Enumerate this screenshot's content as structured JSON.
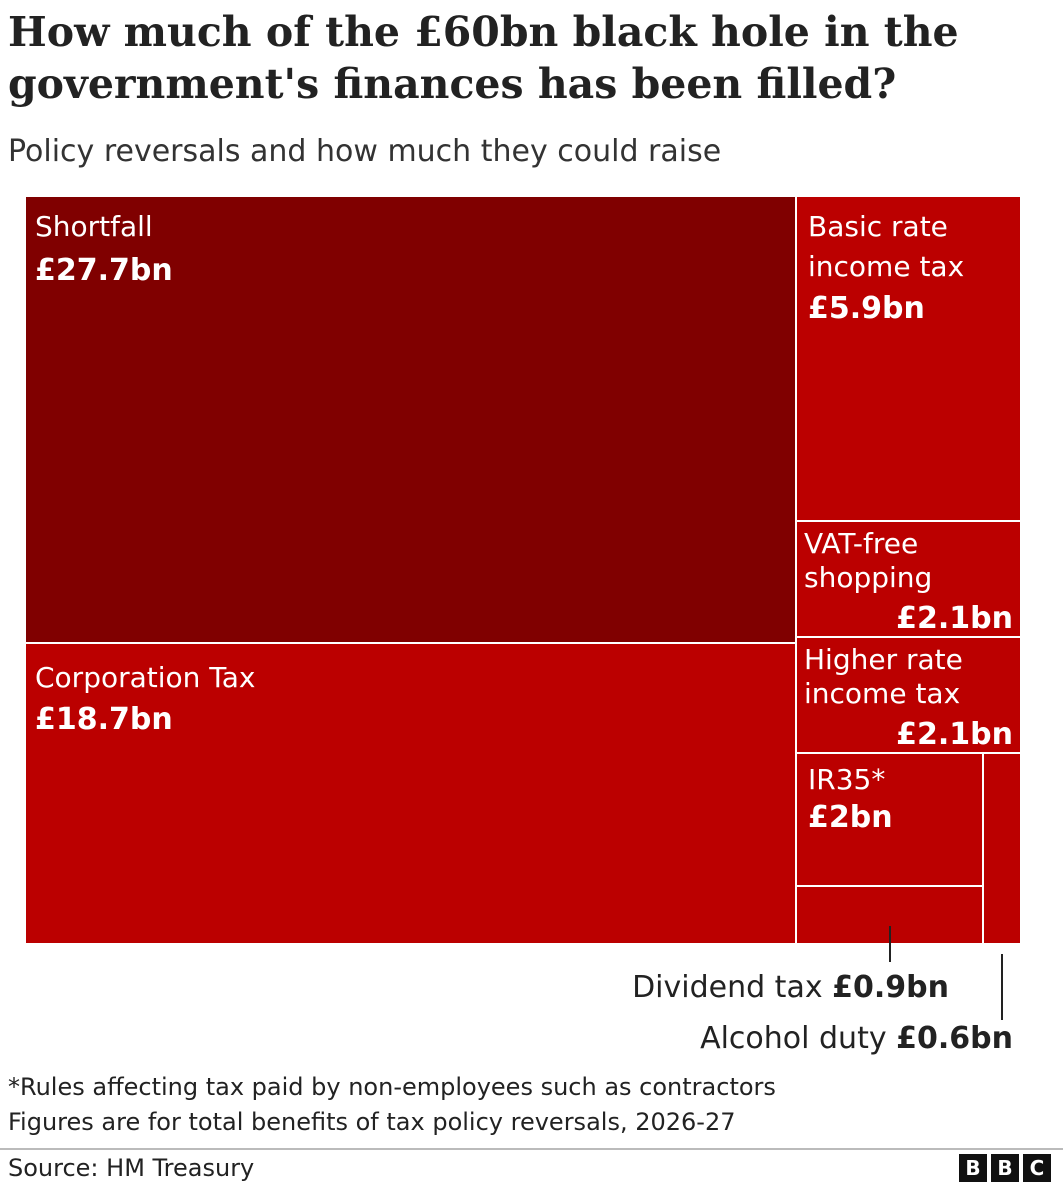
{
  "title": "How much of the £60bn black hole in the government's finances has been filled?",
  "subtitle": "Policy reversals and how much they could raise",
  "chart_data": {
    "type": "treemap",
    "unit": "£bn",
    "items": [
      {
        "name": "Shortfall",
        "value": 27.7,
        "value_label": "£27.7bn",
        "color": "#800000"
      },
      {
        "name": "Corporation Tax",
        "value": 18.7,
        "value_label": "£18.7bn",
        "color": "#bb0000"
      },
      {
        "name": "Basic rate income tax",
        "value": 5.9,
        "value_label": "£5.9bn",
        "color": "#bb0000"
      },
      {
        "name": "VAT-free shopping",
        "value": 2.1,
        "value_label": "£2.1bn",
        "color": "#bb0000"
      },
      {
        "name": "Higher rate income tax",
        "value": 2.1,
        "value_label": "£2.1bn",
        "color": "#bb0000"
      },
      {
        "name": "IR35*",
        "value": 2.0,
        "value_label": "£2bn",
        "color": "#bb0000"
      },
      {
        "name": "Dividend tax",
        "value": 0.9,
        "value_label": "£0.9bn",
        "color": "#bb0000"
      },
      {
        "name": "Alcohol duty",
        "value": 0.6,
        "value_label": "£0.6bn",
        "color": "#bb0000"
      }
    ]
  },
  "footnotes": [
    "*Rules affecting tax paid by non-employees such as contractors",
    "Figures are for total benefits of tax policy reversals, 2026-27"
  ],
  "source": "Source: HM Treasury",
  "logo": [
    "B",
    "B",
    "C"
  ]
}
